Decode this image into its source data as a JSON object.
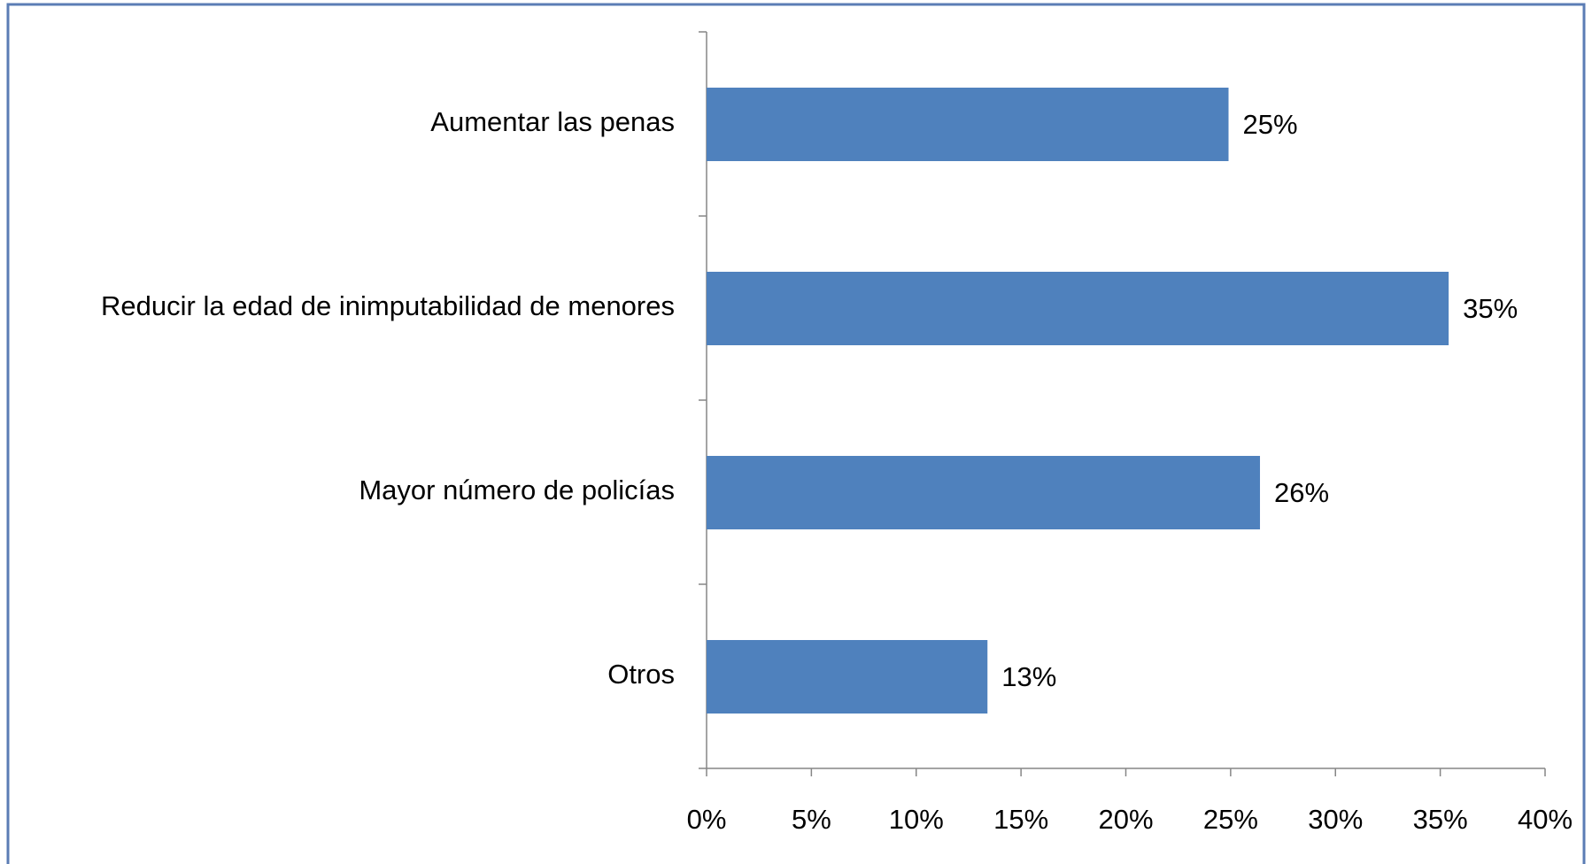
{
  "chart_data": {
    "type": "barh",
    "categories": [
      "Aumentar las penas",
      "Reducir la edad de inimputabilidad de menores",
      "Mayor número de policías",
      "Otros"
    ],
    "values": [
      24.9,
      35.4,
      26.4,
      13.4
    ],
    "value_labels": [
      "25%",
      "35%",
      "26%",
      "13%"
    ],
    "color": "#4f81bd",
    "xlim": [
      0,
      40
    ],
    "xticks": [
      {
        "value": 0,
        "label": "0%"
      },
      {
        "value": 5,
        "label": "5%"
      },
      {
        "value": 10,
        "label": "10%"
      },
      {
        "value": 15,
        "label": "15%"
      },
      {
        "value": 20,
        "label": "20%"
      },
      {
        "value": 25,
        "label": "25%"
      },
      {
        "value": 30,
        "label": "30%"
      },
      {
        "value": 35,
        "label": "35%"
      },
      {
        "value": 40,
        "label": "40%"
      }
    ],
    "grid": false
  }
}
